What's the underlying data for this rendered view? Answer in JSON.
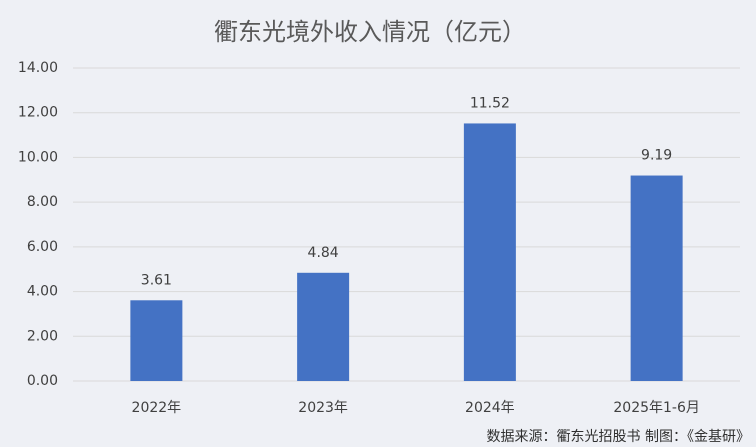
{
  "chart_data": {
    "type": "bar",
    "title": "衢东光境外收入情况（亿元）",
    "categories": [
      "2022年",
      "2023年",
      "2024年",
      "2025年1-6月"
    ],
    "values": [
      3.61,
      4.84,
      11.52,
      9.19
    ],
    "color": "#4472c4",
    "ylim": [
      0,
      14
    ],
    "yticks": [
      {
        "value": 0,
        "label": "0.00"
      },
      {
        "value": 2,
        "label": "2.00"
      },
      {
        "value": 4,
        "label": "4.00"
      },
      {
        "value": 6,
        "label": "6.00"
      },
      {
        "value": 8,
        "label": "8.00"
      },
      {
        "value": 10,
        "label": "10.00"
      },
      {
        "value": 12,
        "label": "12.00"
      },
      {
        "value": 14,
        "label": "14.00"
      }
    ],
    "grid": true,
    "source": "数据来源：衢东光招股书  制图：《金基研》"
  }
}
